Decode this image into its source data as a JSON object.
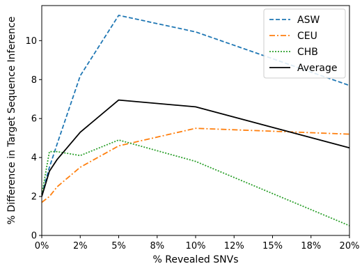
{
  "chart_data": {
    "type": "line",
    "xlabel": "% Revealed SNVs",
    "ylabel": "% Difference in Target Sequence Inference",
    "xlim": [
      0,
      20
    ],
    "ylim": [
      0,
      11.8
    ],
    "x_ticks": [
      0,
      2.5,
      5,
      7.5,
      10,
      12.5,
      15,
      17.5,
      20
    ],
    "x_tick_labels": [
      "0%",
      "2%",
      "5%",
      "8%",
      "10%",
      "12%",
      "15%",
      "18%",
      "20%"
    ],
    "y_ticks": [
      0,
      2,
      4,
      6,
      8,
      10
    ],
    "y_tick_labels": [
      "0",
      "2",
      "4",
      "6",
      "8",
      "10"
    ],
    "grid": false,
    "legend_position": "top-right",
    "series": [
      {
        "name": "ASW",
        "color": "#1f77b4",
        "style": "dashed",
        "x": [
          0,
          0.5,
          1,
          2.5,
          5,
          10,
          20
        ],
        "y": [
          2.1,
          3.5,
          4.7,
          8.2,
          11.3,
          10.45,
          7.7
        ]
      },
      {
        "name": "CEU",
        "color": "#ff7f0e",
        "style": "dashdot",
        "x": [
          0,
          0.5,
          1,
          2.5,
          5,
          10,
          20
        ],
        "y": [
          1.7,
          2.0,
          2.5,
          3.5,
          4.6,
          5.5,
          5.2
        ]
      },
      {
        "name": "CHB",
        "color": "#2ca02c",
        "style": "dotted",
        "x": [
          0,
          0.5,
          1,
          2.5,
          5,
          10,
          20
        ],
        "y": [
          2.1,
          4.3,
          4.3,
          4.1,
          4.9,
          3.8,
          0.5
        ]
      },
      {
        "name": "Average",
        "color": "#000000",
        "style": "solid",
        "x": [
          0,
          0.5,
          1,
          2.5,
          5,
          10,
          20
        ],
        "y": [
          2.0,
          3.3,
          3.9,
          5.3,
          6.95,
          6.6,
          4.5
        ]
      }
    ]
  }
}
